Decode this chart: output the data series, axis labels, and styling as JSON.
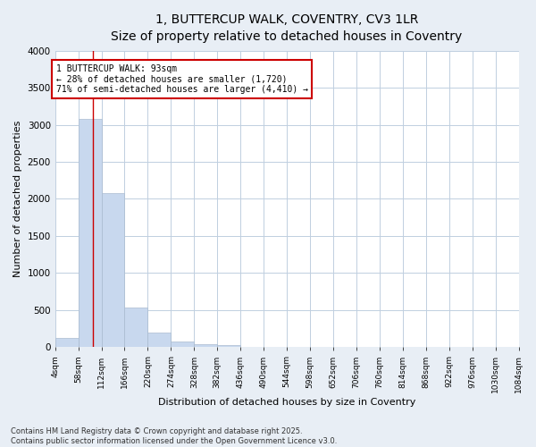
{
  "title_line1": "1, BUTTERCUP WALK, COVENTRY, CV3 1LR",
  "title_line2": "Size of property relative to detached houses in Coventry",
  "xlabel": "Distribution of detached houses by size in Coventry",
  "ylabel": "Number of detached properties",
  "bar_color": "#c8d8ee",
  "bar_edge_color": "#aabbd0",
  "grid_color": "#c0cfe0",
  "plot_bg_color": "#ffffff",
  "fig_bg_color": "#e8eef5",
  "vline_color": "#cc0000",
  "vline_x": 93,
  "annotation_text": "1 BUTTERCUP WALK: 93sqm\n← 28% of detached houses are smaller (1,720)\n71% of semi-detached houses are larger (4,410) →",
  "annotation_box_color": "#ffffff",
  "annotation_border_color": "#cc0000",
  "bins": [
    4,
    58,
    112,
    166,
    220,
    274,
    328,
    382,
    436,
    490,
    544,
    598,
    652,
    706,
    760,
    814,
    868,
    922,
    976,
    1030,
    1084
  ],
  "counts": [
    120,
    3080,
    2080,
    540,
    200,
    75,
    40,
    30,
    5,
    5,
    0,
    0,
    0,
    0,
    0,
    0,
    0,
    0,
    0,
    0
  ],
  "ylim": [
    0,
    4000
  ],
  "yticks": [
    0,
    500,
    1000,
    1500,
    2000,
    2500,
    3000,
    3500,
    4000
  ],
  "footer_text": "Contains HM Land Registry data © Crown copyright and database right 2025.\nContains public sector information licensed under the Open Government Licence v3.0.",
  "title_fontsize": 10,
  "axis_label_fontsize": 8,
  "tick_fontsize": 6.5,
  "footer_fontsize": 6
}
